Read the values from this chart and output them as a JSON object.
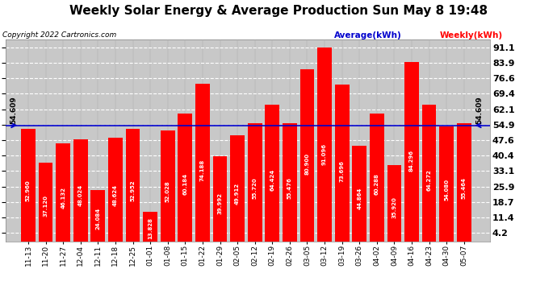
{
  "title": "Weekly Solar Energy & Average Production Sun May 8 19:48",
  "copyright": "Copyright 2022 Cartronics.com",
  "categories": [
    "11-13",
    "11-20",
    "11-27",
    "12-04",
    "12-11",
    "12-18",
    "12-25",
    "01-01",
    "01-08",
    "01-15",
    "01-22",
    "01-29",
    "02-05",
    "02-12",
    "02-19",
    "02-26",
    "03-05",
    "03-12",
    "03-19",
    "03-26",
    "04-02",
    "04-09",
    "04-16",
    "04-23",
    "04-30",
    "05-07"
  ],
  "values": [
    52.96,
    37.12,
    46.132,
    48.024,
    24.084,
    48.624,
    52.952,
    13.828,
    52.028,
    60.184,
    74.188,
    39.992,
    49.912,
    55.72,
    64.424,
    55.476,
    80.9,
    91.096,
    73.696,
    44.864,
    60.288,
    35.92,
    84.296,
    64.272,
    54.08,
    55.464
  ],
  "average": 54.609,
  "bar_color": "#ff0000",
  "average_line_color": "#0000cd",
  "background_color": "#ffffff",
  "plot_bg_color": "#c8c8c8",
  "grid_color": "#ffffff",
  "yticks": [
    4.2,
    11.4,
    18.7,
    25.9,
    33.1,
    40.4,
    47.6,
    54.9,
    62.1,
    69.4,
    76.6,
    83.9,
    91.1
  ],
  "avg_label": "54.609",
  "avg_label_fontsize": 6.5,
  "bar_label_fontsize": 5.0,
  "title_fontsize": 11,
  "copyright_fontsize": 6.5,
  "legend_avg_color": "#0000cd",
  "legend_weekly_color": "#ff0000",
  "ytick_fontsize": 8,
  "xtick_fontsize": 6.5
}
